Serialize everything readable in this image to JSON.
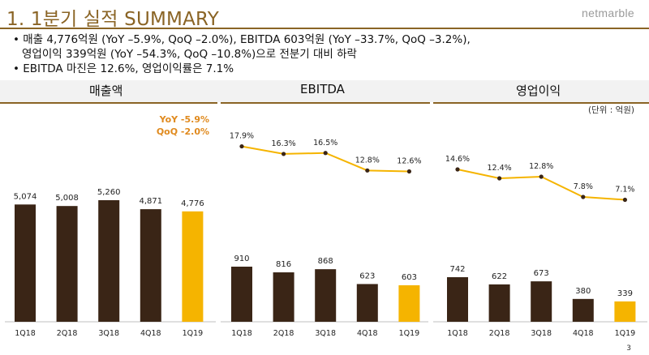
{
  "header": {
    "title": "1. 1분기 실적 SUMMARY",
    "logo": "netmarble"
  },
  "bullets": [
    "• 매출 4,776억원 (YoY –5.9%, QoQ –2.0%), EBITDA 603억원 (YoY –33.7%, QoQ –3.2%),",
    "영업이익 339억원 (YoY –54.3%, QoQ –10.8%)으로 전분기 대비 하락",
    "• EBITDA 마진은 12.6%, 영업이익률은 7.1%"
  ],
  "unit_label": "(단위 : 억원)",
  "page_number": "3",
  "colors": {
    "dark_bar": "#3a2516",
    "highlight_bar": "#f5b400",
    "line": "#f5b400",
    "accent": "#8a6425",
    "yoy_text": "#e08a1e"
  },
  "chart_data": [
    {
      "type": "bar",
      "title": "매출액",
      "categories": [
        "1Q18",
        "2Q18",
        "3Q18",
        "4Q18",
        "1Q19"
      ],
      "values": [
        5074,
        5008,
        5260,
        4871,
        4776
      ],
      "value_labels": [
        "5,074",
        "5,008",
        "5,260",
        "4,871",
        "4,776"
      ],
      "annotations": [
        "YoY -5.9%",
        "QoQ  -2.0%"
      ],
      "ylim": [
        0,
        5600
      ]
    },
    {
      "type": "bar+line",
      "title": "EBITDA",
      "categories": [
        "1Q18",
        "2Q18",
        "3Q18",
        "4Q18",
        "1Q19"
      ],
      "values": [
        910,
        816,
        868,
        623,
        603
      ],
      "value_labels": [
        "910",
        "816",
        "868",
        "623",
        "603"
      ],
      "margin_pct": [
        17.9,
        16.3,
        16.5,
        12.8,
        12.6
      ],
      "margin_labels": [
        "17.9%",
        "16.3%",
        "16.5%",
        "12.8%",
        "12.6%"
      ],
      "ylim": [
        0,
        1200
      ],
      "line_ylim": [
        0,
        20
      ]
    },
    {
      "type": "bar+line",
      "title": "영업이익",
      "categories": [
        "1Q18",
        "2Q18",
        "3Q18",
        "4Q18",
        "1Q19"
      ],
      "values": [
        742,
        622,
        673,
        380,
        339
      ],
      "value_labels": [
        "742",
        "622",
        "673",
        "380",
        "339"
      ],
      "margin_pct": [
        14.6,
        12.4,
        12.8,
        7.8,
        7.1
      ],
      "margin_labels": [
        "14.6%",
        "12.4%",
        "12.8%",
        "7.8%",
        "7.1%"
      ],
      "ylim": [
        0,
        1000
      ],
      "line_ylim": [
        0,
        20
      ]
    }
  ]
}
